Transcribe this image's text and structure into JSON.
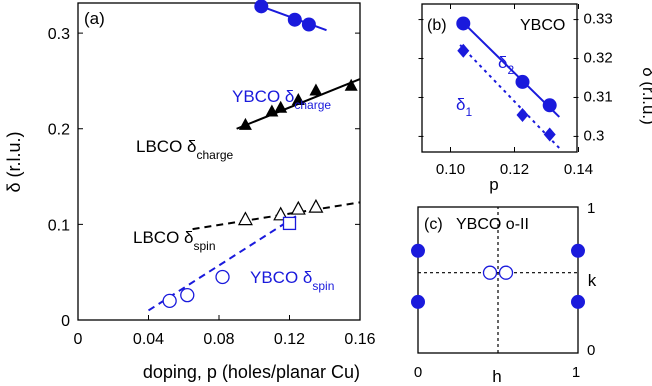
{
  "colors": {
    "blue": "#1a1adc",
    "black": "#000000"
  },
  "chart_data": [
    {
      "panel": "a",
      "panel_label": "(a)",
      "type": "scatter",
      "xlabel": "doping, p (holes/planar Cu)",
      "ylabel": "δ (r.l.u.)",
      "xlim": [
        0,
        0.16
      ],
      "ylim": [
        0,
        0.35
      ],
      "xticks": [
        "0",
        "0.04",
        "0.08",
        "0.12",
        "0.16"
      ],
      "yticks": [
        "0",
        "0.1",
        "0.2",
        "0.3"
      ],
      "series": [
        {
          "name": "YBCO δcharge",
          "label_main": "YBCO δ",
          "label_sub": "charge",
          "marker": "filled-circle",
          "color": "#1a1adc",
          "line": "solid",
          "points": [
            [
              0.104,
              0.328
            ],
            [
              0.123,
              0.314
            ],
            [
              0.131,
              0.309
            ]
          ],
          "fit": [
            [
              0.101,
              0.33
            ],
            [
              0.141,
              0.303
            ]
          ]
        },
        {
          "name": "LBCO δcharge",
          "label_main": "LBCO δ",
          "label_sub": "charge",
          "marker": "filled-triangle",
          "color": "#000000",
          "line": "solid",
          "points": [
            [
              0.095,
              0.204
            ],
            [
              0.11,
              0.218
            ],
            [
              0.115,
              0.222
            ],
            [
              0.125,
              0.23
            ],
            [
              0.135,
              0.24
            ],
            [
              0.155,
              0.245
            ]
          ],
          "fit": [
            [
              0.09,
              0.2
            ],
            [
              0.16,
              0.252
            ]
          ]
        },
        {
          "name": "LBCO δspin",
          "label_main": "LBCO δ",
          "label_sub": "spin",
          "marker": "open-triangle",
          "color": "#000000",
          "line": "dashed",
          "points": [
            [
              0.095,
              0.105
            ],
            [
              0.115,
              0.11
            ],
            [
              0.125,
              0.116
            ],
            [
              0.135,
              0.118
            ]
          ],
          "fit": [
            [
              0.065,
              0.095
            ],
            [
              0.16,
              0.123
            ]
          ]
        },
        {
          "name": "YBCO δspin",
          "label_main": "YBCO δ",
          "label_sub": "spin",
          "marker": "open-circle",
          "color": "#1a1adc",
          "line": "dashed",
          "points": [
            [
              0.052,
              0.02
            ],
            [
              0.062,
              0.026
            ],
            [
              0.082,
              0.045
            ]
          ],
          "fit": [
            [
              0.04,
              0.01
            ],
            [
              0.125,
              0.11
            ]
          ]
        },
        {
          "name": "",
          "marker": "open-square",
          "color": "#1a1adc",
          "line": "none",
          "points": [
            [
              0.12,
              0.101
            ]
          ]
        }
      ]
    },
    {
      "panel": "b",
      "panel_label": "(b)",
      "type": "scatter",
      "title": "YBCO",
      "xlabel": "p",
      "ylabel": "δ (r.l.u.)",
      "xlim": [
        0.09,
        0.14
      ],
      "ylim": [
        0.296,
        0.334
      ],
      "xticks": [
        "0.10",
        "0.12",
        "0.14"
      ],
      "yticks": [
        "0.3",
        "0.31",
        "0.32",
        "0.33"
      ],
      "series": [
        {
          "name": "δ2",
          "label_main": "δ",
          "label_sub": "2",
          "marker": "filled-circle",
          "color": "#1a1adc",
          "line": "solid",
          "points": [
            [
              0.104,
              0.329
            ],
            [
              0.1225,
              0.314
            ],
            [
              0.131,
              0.308
            ]
          ],
          "fit": [
            [
              0.103,
              0.33
            ],
            [
              0.134,
              0.305
            ]
          ]
        },
        {
          "name": "δ1",
          "label_main": "δ",
          "label_sub": "1",
          "marker": "filled-diamond",
          "color": "#1a1adc",
          "line": "dotted",
          "points": [
            [
              0.104,
              0.322
            ],
            [
              0.1225,
              0.3055
            ],
            [
              0.131,
              0.3005
            ]
          ],
          "fit": [
            [
              0.103,
              0.3235
            ],
            [
              0.134,
              0.297
            ]
          ]
        }
      ]
    },
    {
      "panel": "c",
      "panel_label": "(c)",
      "type": "scatter",
      "title": "YBCO o-II",
      "xlabel": "h",
      "ylabel": "k",
      "xlim": [
        0,
        1
      ],
      "ylim": [
        0,
        1
      ],
      "xticks": [
        "0",
        "1"
      ],
      "yticks": [
        "0",
        "1"
      ],
      "series": [
        {
          "name": "",
          "marker": "filled-circle",
          "color": "#1a1adc",
          "points": [
            [
              0,
              0.7
            ],
            [
              0,
              0.35
            ],
            [
              1,
              0.7
            ],
            [
              1,
              0.35
            ]
          ]
        },
        {
          "name": "",
          "marker": "open-circle",
          "color": "#1a1adc",
          "points": [
            [
              0.45,
              0.55
            ],
            [
              0.55,
              0.55
            ]
          ]
        }
      ],
      "guides": {
        "h": 0.55,
        "v": 0.5
      }
    }
  ]
}
